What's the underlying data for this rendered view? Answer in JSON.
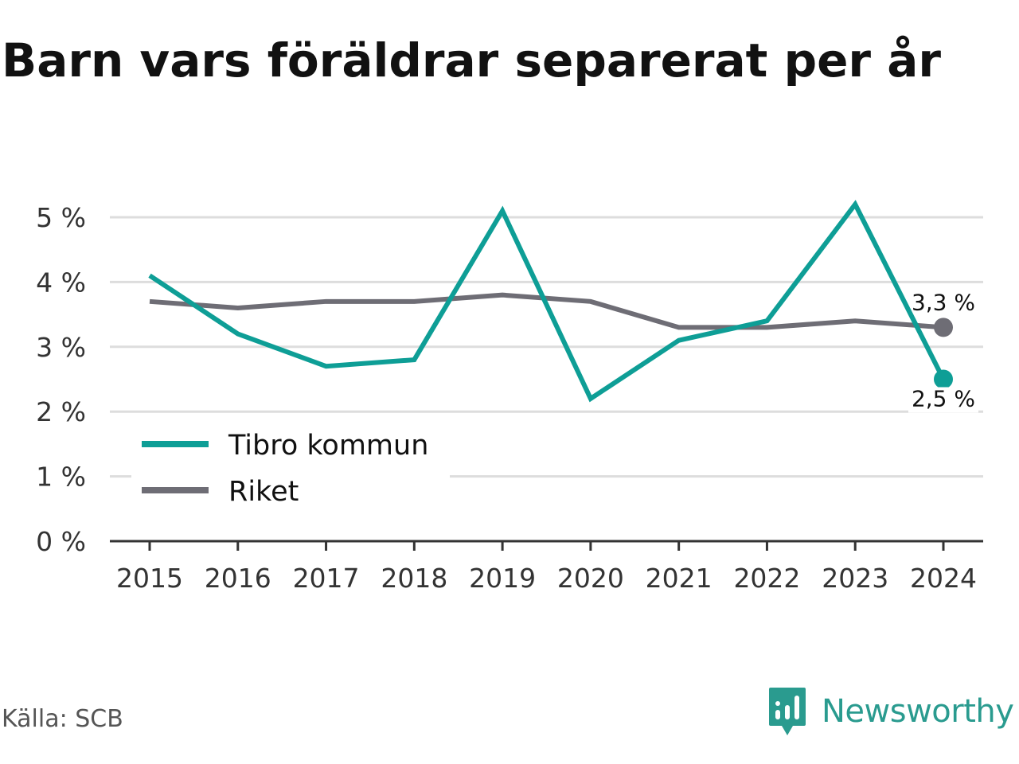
{
  "title": "Barn vars föräldrar separerat per år",
  "source": "Källa: SCB",
  "brand": "Newsworthy",
  "colors": {
    "tibro": "#0e9e96",
    "riket": "#6e6d75",
    "grid": "#dddddd",
    "axis": "#333333",
    "brand": "#2a9b8f"
  },
  "chart_data": {
    "type": "line",
    "title": "Barn vars föräldrar separerat per år",
    "xlabel": "",
    "ylabel": "",
    "x": [
      "2015",
      "2016",
      "2017",
      "2018",
      "2019",
      "2020",
      "2021",
      "2022",
      "2023",
      "2024"
    ],
    "ylim": [
      0,
      5
    ],
    "yticks": [
      0,
      1,
      2,
      3,
      4,
      5
    ],
    "ytick_labels": [
      "0 %",
      "1 %",
      "2 %",
      "3 %",
      "4 %",
      "5 %"
    ],
    "grid": true,
    "legend_position": "bottom-left",
    "series": [
      {
        "name": "Tibro kommun",
        "color": "#0e9e96",
        "values": [
          4.1,
          3.2,
          2.7,
          2.8,
          5.1,
          2.2,
          3.1,
          3.4,
          5.2,
          2.5
        ],
        "end_label": "2,5 %"
      },
      {
        "name": "Riket",
        "color": "#6e6d75",
        "values": [
          3.7,
          3.6,
          3.7,
          3.7,
          3.8,
          3.7,
          3.3,
          3.3,
          3.4,
          3.3
        ],
        "end_label": "3,3 %"
      }
    ]
  }
}
